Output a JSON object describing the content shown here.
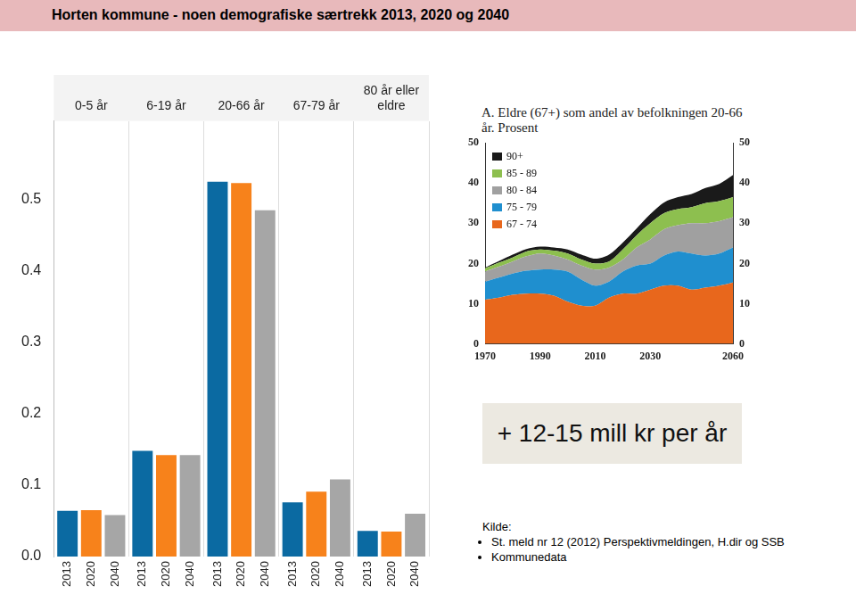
{
  "title": "Horten kommune - noen demografiske særtrekk 2013, 2020 og 2040",
  "chart_data": [
    {
      "type": "bar",
      "categories": [
        "0-5 år",
        "6-19 år",
        "20-66 år",
        "67-79 år",
        "80 år eller eldre"
      ],
      "series": [
        {
          "name": "2013",
          "color": "#0b6aa2",
          "values": [
            0.064,
            0.148,
            0.525,
            0.076,
            0.036
          ]
        },
        {
          "name": "2020",
          "color": "#f7821b",
          "values": [
            0.065,
            0.142,
            0.523,
            0.091,
            0.035
          ]
        },
        {
          "name": "2040",
          "color": "#a6a6a6",
          "values": [
            0.058,
            0.142,
            0.485,
            0.108,
            0.06
          ]
        }
      ],
      "ylim": [
        0,
        0.61
      ],
      "yticks": [
        {
          "value": 0,
          "label": "0.0"
        },
        0.1,
        0.2,
        0.3,
        0.4,
        0.5
      ],
      "grid": false
    },
    {
      "type": "area",
      "title": "A. Eldre (67+) som andel av befolkningen 20-66 år. Prosent",
      "x": [
        1970,
        1975,
        1980,
        1985,
        1990,
        1995,
        2000,
        2005,
        2010,
        2015,
        2020,
        2025,
        2030,
        2035,
        2040,
        2045,
        2050,
        2055,
        2060
      ],
      "series": [
        {
          "name": "67 - 74",
          "color": "#e8671c",
          "values": [
            11,
            11.5,
            12.2,
            12.5,
            12.5,
            12,
            10.5,
            9.5,
            9.5,
            11.5,
            12.5,
            12.5,
            13.5,
            14.5,
            14.5,
            13.5,
            14,
            14.5,
            15.3
          ]
        },
        {
          "name": "75 - 79",
          "color": "#1f8fcf",
          "values": [
            4.5,
            5,
            5.3,
            5.7,
            6,
            6.5,
            7.5,
            6.5,
            5,
            4,
            5.5,
            7,
            6.5,
            7.5,
            8.5,
            9,
            8,
            8,
            8.7
          ]
        },
        {
          "name": "80 - 84",
          "color": "#a0a0a0",
          "values": [
            2.5,
            2.7,
            3,
            3.6,
            4,
            3.5,
            3,
            3.5,
            4,
            3.5,
            3,
            4.5,
            6,
            6.5,
            6.5,
            7.5,
            8,
            8,
            7.5
          ]
        },
        {
          "name": "85 - 89",
          "color": "#8dbf4f",
          "values": [
            0.8,
            1,
            1,
            1.2,
            1,
            1.2,
            1.5,
            1.5,
            1.5,
            1.5,
            2.5,
            3,
            4,
            4,
            4,
            4,
            5,
            5,
            5
          ]
        },
        {
          "name": "90+",
          "color": "#1a1a1a",
          "values": [
            0.2,
            0.4,
            0.7,
            0.6,
            0.7,
            0.8,
            1,
            1.2,
            1.2,
            1.7,
            1.7,
            1.7,
            2.3,
            2.7,
            3,
            3.3,
            3.8,
            4.3,
            5.5
          ]
        }
      ],
      "xlim": [
        1970,
        2060
      ],
      "xticks": [
        1970,
        1990,
        2010,
        2030,
        2060
      ],
      "ylim": [
        0,
        50
      ],
      "yticks": [
        0,
        10,
        20,
        30,
        40,
        50
      ],
      "y2lim": [
        0,
        50
      ],
      "y2ticks": [
        0,
        10,
        20,
        30,
        40,
        50
      ],
      "stacked": true,
      "grid": false,
      "legend": "top-left"
    }
  ],
  "annotation": "+ 12-15 mill kr per år",
  "source": {
    "label": "Kilde:",
    "items": [
      "St. meld nr 12 (2012) Perspektivmeldingen, H.dir og SSB",
      "Kommunedata"
    ]
  }
}
